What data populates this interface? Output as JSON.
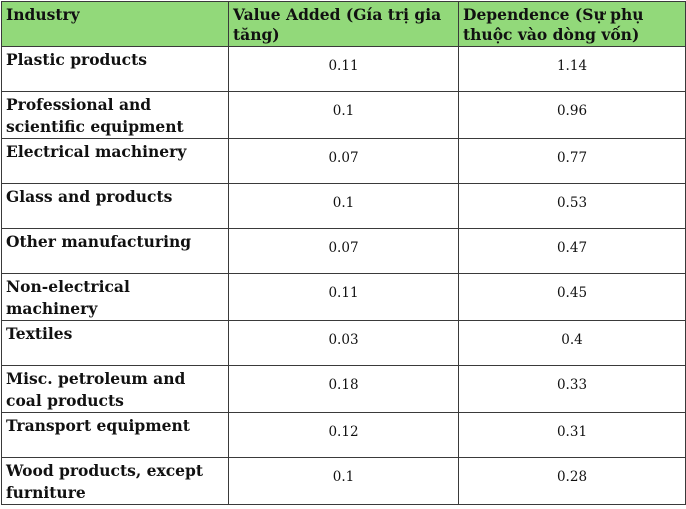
{
  "table": {
    "columns": [
      "Industry",
      "Value Added (Gía trị gia tăng)",
      "Dependence (Sự phụ thuộc vào dòng vốn)"
    ],
    "rows": [
      {
        "industry": "Plastic products",
        "value_added": "0.11",
        "dependence": "1.14"
      },
      {
        "industry": "Professional and scientific equipment",
        "value_added": "0.1",
        "dependence": "0.96"
      },
      {
        "industry": "Electrical machinery",
        "value_added": "0.07",
        "dependence": "0.77"
      },
      {
        "industry": "Glass and products",
        "value_added": "0.1",
        "dependence": "0.53"
      },
      {
        "industry": "Other manufacturing",
        "value_added": "0.07",
        "dependence": "0.47"
      },
      {
        "industry": "Non-electrical machinery",
        "value_added": "0.11",
        "dependence": "0.45"
      },
      {
        "industry": "Textiles",
        "value_added": "0.03",
        "dependence": "0.4"
      },
      {
        "industry": "Misc. petroleum and coal products",
        "value_added": "0.18",
        "dependence": "0.33"
      },
      {
        "industry": "Transport equipment",
        "value_added": "0.12",
        "dependence": "0.31"
      },
      {
        "industry": "Wood products, except furniture",
        "value_added": "0.1",
        "dependence": "0.28"
      }
    ],
    "colors": {
      "header_background": "#92d97a",
      "border": "#3a3a3a"
    }
  }
}
